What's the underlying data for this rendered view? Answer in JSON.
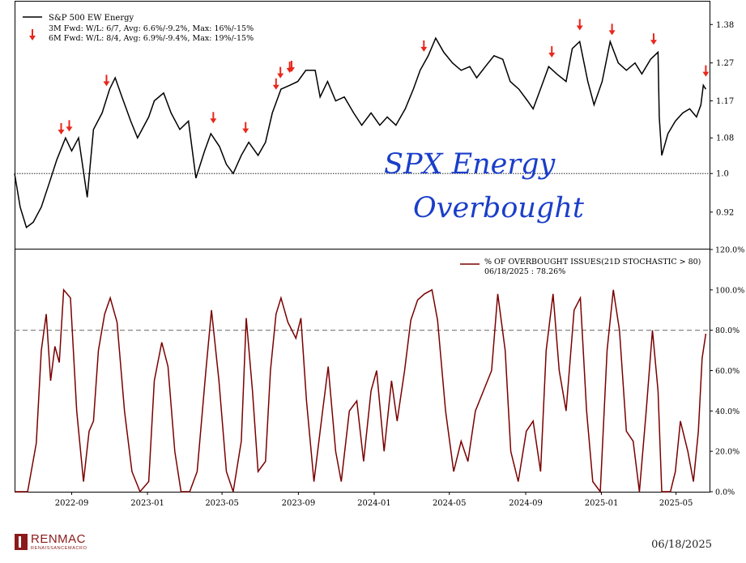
{
  "footer": {
    "brand": "RENMAC",
    "brand_sub": "RENAISSANCEMACRO",
    "date": "06/18/2025"
  },
  "colors": {
    "price": "#000000",
    "oscillator": "#7a0000",
    "arrow": "#e8271b",
    "annotation": "#1a3ec9"
  },
  "handwritten_annotation": [
    "SPX Energy",
    "Overbought"
  ],
  "chart_data": [
    {
      "type": "line",
      "panel": "top",
      "legend": {
        "series_label": "S&P 500 EW Energy",
        "arrow_line1": "3M Fwd: W/L: 6/7, Avg: 6.6%/-9.2%, Max: 16%/-15%",
        "arrow_line2": "6M Fwd: W/L: 8/4, Avg: 6.9%/-9.4%, Max: 19%/-15%"
      },
      "y_scale": "log",
      "ylim": [
        0.85,
        1.45
      ],
      "y_ticks": [
        "0.92",
        "1.0",
        "1.08",
        "1.17",
        "1.27",
        "1.38"
      ],
      "reference_line": 1.0,
      "xlim": [
        "2022-06-01",
        "2025-06-24"
      ],
      "series": [
        {
          "name": "S&P 500 EW Energy",
          "points": [
            [
              "2022-06-01",
              1.0
            ],
            [
              "2022-06-10",
              0.93
            ],
            [
              "2022-06-20",
              0.89
            ],
            [
              "2022-07-01",
              0.9
            ],
            [
              "2022-07-14",
              0.93
            ],
            [
              "2022-07-27",
              0.98
            ],
            [
              "2022-08-08",
              1.03
            ],
            [
              "2022-08-22",
              1.08
            ],
            [
              "2022-09-01",
              1.05
            ],
            [
              "2022-09-12",
              1.08
            ],
            [
              "2022-09-26",
              0.95
            ],
            [
              "2022-10-06",
              1.1
            ],
            [
              "2022-10-20",
              1.14
            ],
            [
              "2022-11-01",
              1.2
            ],
            [
              "2022-11-10",
              1.23
            ],
            [
              "2022-11-21",
              1.18
            ],
            [
              "2022-12-05",
              1.12
            ],
            [
              "2022-12-16",
              1.08
            ],
            [
              "2023-01-03",
              1.13
            ],
            [
              "2023-01-12",
              1.17
            ],
            [
              "2023-01-27",
              1.19
            ],
            [
              "2023-02-08",
              1.14
            ],
            [
              "2023-02-22",
              1.1
            ],
            [
              "2023-03-08",
              1.12
            ],
            [
              "2023-03-20",
              0.99
            ],
            [
              "2023-04-03",
              1.05
            ],
            [
              "2023-04-13",
              1.09
            ],
            [
              "2023-04-27",
              1.06
            ],
            [
              "2023-05-08",
              1.02
            ],
            [
              "2023-05-19",
              1.0
            ],
            [
              "2023-06-01",
              1.04
            ],
            [
              "2023-06-13",
              1.07
            ],
            [
              "2023-06-28",
              1.04
            ],
            [
              "2023-07-10",
              1.07
            ],
            [
              "2023-07-21",
              1.14
            ],
            [
              "2023-08-04",
              1.2
            ],
            [
              "2023-08-18",
              1.21
            ],
            [
              "2023-08-31",
              1.22
            ],
            [
              "2023-09-13",
              1.25
            ],
            [
              "2023-09-28",
              1.25
            ],
            [
              "2023-10-06",
              1.18
            ],
            [
              "2023-10-18",
              1.22
            ],
            [
              "2023-10-31",
              1.17
            ],
            [
              "2023-11-14",
              1.18
            ],
            [
              "2023-11-29",
              1.14
            ],
            [
              "2023-12-12",
              1.11
            ],
            [
              "2023-12-27",
              1.14
            ],
            [
              "2024-01-10",
              1.11
            ],
            [
              "2024-01-22",
              1.13
            ],
            [
              "2024-02-05",
              1.11
            ],
            [
              "2024-02-20",
              1.15
            ],
            [
              "2024-03-04",
              1.2
            ],
            [
              "2024-03-15",
              1.25
            ],
            [
              "2024-03-28",
              1.29
            ],
            [
              "2024-04-09",
              1.34
            ],
            [
              "2024-04-22",
              1.3
            ],
            [
              "2024-05-06",
              1.27
            ],
            [
              "2024-05-20",
              1.25
            ],
            [
              "2024-06-03",
              1.26
            ],
            [
              "2024-06-14",
              1.23
            ],
            [
              "2024-06-28",
              1.26
            ],
            [
              "2024-07-12",
              1.29
            ],
            [
              "2024-07-26",
              1.28
            ],
            [
              "2024-08-07",
              1.22
            ],
            [
              "2024-08-21",
              1.2
            ],
            [
              "2024-09-04",
              1.17
            ],
            [
              "2024-09-13",
              1.15
            ],
            [
              "2024-09-27",
              1.21
            ],
            [
              "2024-10-08",
              1.26
            ],
            [
              "2024-10-21",
              1.24
            ],
            [
              "2024-11-05",
              1.22
            ],
            [
              "2024-11-15",
              1.31
            ],
            [
              "2024-11-27",
              1.33
            ],
            [
              "2024-12-10",
              1.22
            ],
            [
              "2024-12-20",
              1.16
            ],
            [
              "2025-01-02",
              1.22
            ],
            [
              "2025-01-15",
              1.33
            ],
            [
              "2025-01-28",
              1.27
            ],
            [
              "2025-02-10",
              1.25
            ],
            [
              "2025-02-24",
              1.27
            ],
            [
              "2025-03-07",
              1.24
            ],
            [
              "2025-03-21",
              1.28
            ],
            [
              "2025-04-02",
              1.3
            ],
            [
              "2025-04-04",
              1.13
            ],
            [
              "2025-04-08",
              1.04
            ],
            [
              "2025-04-18",
              1.09
            ],
            [
              "2025-04-30",
              1.12
            ],
            [
              "2025-05-12",
              1.14
            ],
            [
              "2025-05-23",
              1.15
            ],
            [
              "2025-06-03",
              1.13
            ],
            [
              "2025-06-10",
              1.16
            ],
            [
              "2025-06-14",
              1.21
            ],
            [
              "2025-06-18",
              1.2
            ]
          ]
        }
      ],
      "overbought_arrow_dates": [
        "2022-08-15",
        "2022-08-28",
        "2022-10-27",
        "2023-04-17",
        "2023-06-08",
        "2023-07-27",
        "2023-08-03",
        "2023-08-18",
        "2023-08-21",
        "2024-03-21",
        "2024-10-13",
        "2024-11-27",
        "2025-01-18",
        "2025-03-26",
        "2025-06-18"
      ],
      "arrow_value_offset": 0.035
    },
    {
      "type": "line",
      "panel": "bottom",
      "legend": {
        "series_label": "% OF OVERBOUGHT ISSUES(21D STOCHASTIC > 80)",
        "latest_label": "06/18/2025 : 78.26%"
      },
      "ylim": [
        0,
        120
      ],
      "y_ticks": [
        "0.0%",
        "20.0%",
        "40.0%",
        "60.0%",
        "80.0%",
        "100.0%",
        "120.0%"
      ],
      "threshold": 80,
      "xlim": [
        "2022-06-01",
        "2025-06-24"
      ],
      "x_ticks": [
        "2022-09",
        "2023-01",
        "2023-05",
        "2023-09",
        "2024-01",
        "2024-05",
        "2024-09",
        "2025-01",
        "2025-05"
      ],
      "series": [
        {
          "name": "% OF OVERBOUGHT ISSUES(21D STOCHASTIC > 80)",
          "points": [
            [
              "2022-06-01",
              0
            ],
            [
              "2022-06-22",
              0
            ],
            [
              "2022-07-06",
              24
            ],
            [
              "2022-07-14",
              70
            ],
            [
              "2022-07-22",
              88
            ],
            [
              "2022-07-29",
              55
            ],
            [
              "2022-08-05",
              72
            ],
            [
              "2022-08-12",
              64
            ],
            [
              "2022-08-19",
              100
            ],
            [
              "2022-08-30",
              96
            ],
            [
              "2022-09-09",
              40
            ],
            [
              "2022-09-20",
              5
            ],
            [
              "2022-09-29",
              30
            ],
            [
              "2022-10-06",
              35
            ],
            [
              "2022-10-14",
              70
            ],
            [
              "2022-10-24",
              88
            ],
            [
              "2022-11-02",
              96
            ],
            [
              "2022-11-13",
              84
            ],
            [
              "2022-11-25",
              40
            ],
            [
              "2022-12-07",
              10
            ],
            [
              "2022-12-20",
              0
            ],
            [
              "2023-01-03",
              5
            ],
            [
              "2023-01-12",
              55
            ],
            [
              "2023-01-24",
              74
            ],
            [
              "2023-02-03",
              62
            ],
            [
              "2023-02-14",
              20
            ],
            [
              "2023-02-24",
              0
            ],
            [
              "2023-03-10",
              0
            ],
            [
              "2023-03-22",
              10
            ],
            [
              "2023-04-05",
              60
            ],
            [
              "2023-04-14",
              90
            ],
            [
              "2023-04-26",
              55
            ],
            [
              "2023-05-08",
              10
            ],
            [
              "2023-05-19",
              0
            ],
            [
              "2023-06-01",
              25
            ],
            [
              "2023-06-09",
              86
            ],
            [
              "2023-06-19",
              50
            ],
            [
              "2023-06-28",
              10
            ],
            [
              "2023-07-10",
              15
            ],
            [
              "2023-07-18",
              60
            ],
            [
              "2023-07-27",
              88
            ],
            [
              "2023-08-04",
              96
            ],
            [
              "2023-08-15",
              84
            ],
            [
              "2023-08-28",
              76
            ],
            [
              "2023-09-05",
              86
            ],
            [
              "2023-09-14",
              45
            ],
            [
              "2023-09-26",
              5
            ],
            [
              "2023-10-10",
              40
            ],
            [
              "2023-10-19",
              62
            ],
            [
              "2023-10-31",
              20
            ],
            [
              "2023-11-09",
              5
            ],
            [
              "2023-11-22",
              40
            ],
            [
              "2023-12-04",
              45
            ],
            [
              "2023-12-15",
              15
            ],
            [
              "2023-12-27",
              50
            ],
            [
              "2024-01-05",
              60
            ],
            [
              "2024-01-17",
              20
            ],
            [
              "2024-01-29",
              55
            ],
            [
              "2024-02-07",
              35
            ],
            [
              "2024-02-19",
              60
            ],
            [
              "2024-02-29",
              85
            ],
            [
              "2024-03-11",
              95
            ],
            [
              "2024-03-22",
              98
            ],
            [
              "2024-04-03",
              100
            ],
            [
              "2024-04-12",
              85
            ],
            [
              "2024-04-25",
              40
            ],
            [
              "2024-05-08",
              10
            ],
            [
              "2024-05-20",
              25
            ],
            [
              "2024-05-31",
              15
            ],
            [
              "2024-06-12",
              40
            ],
            [
              "2024-06-25",
              50
            ],
            [
              "2024-07-08",
              60
            ],
            [
              "2024-07-18",
              98
            ],
            [
              "2024-07-30",
              70
            ],
            [
              "2024-08-08",
              20
            ],
            [
              "2024-08-20",
              5
            ],
            [
              "2024-09-02",
              30
            ],
            [
              "2024-09-13",
              35
            ],
            [
              "2024-09-25",
              10
            ],
            [
              "2024-10-04",
              70
            ],
            [
              "2024-10-15",
              98
            ],
            [
              "2024-10-25",
              60
            ],
            [
              "2024-11-05",
              40
            ],
            [
              "2024-11-18",
              90
            ],
            [
              "2024-11-28",
              96
            ],
            [
              "2024-12-08",
              40
            ],
            [
              "2024-12-18",
              5
            ],
            [
              "2024-12-30",
              0
            ],
            [
              "2025-01-10",
              70
            ],
            [
              "2025-01-20",
              100
            ],
            [
              "2025-01-30",
              80
            ],
            [
              "2025-02-10",
              30
            ],
            [
              "2025-02-21",
              25
            ],
            [
              "2025-03-03",
              0
            ],
            [
              "2025-03-14",
              40
            ],
            [
              "2025-03-24",
              80
            ],
            [
              "2025-04-02",
              50
            ],
            [
              "2025-04-08",
              0
            ],
            [
              "2025-04-22",
              0
            ],
            [
              "2025-04-30",
              10
            ],
            [
              "2025-05-08",
              35
            ],
            [
              "2025-05-20",
              20
            ],
            [
              "2025-05-29",
              5
            ],
            [
              "2025-06-06",
              30
            ],
            [
              "2025-06-12",
              66
            ],
            [
              "2025-06-18",
              78.26
            ]
          ]
        }
      ]
    }
  ]
}
